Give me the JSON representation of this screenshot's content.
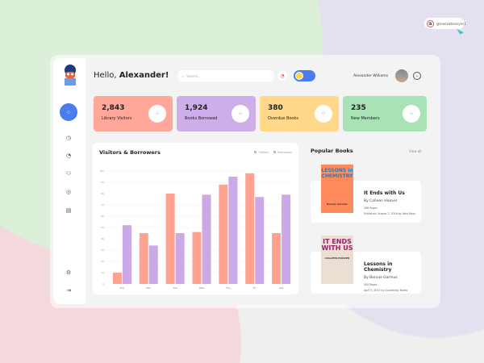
{
  "badge": {
    "text": "@innovationsync1",
    "logo": "IS"
  },
  "header": {
    "greeting": "Hello,",
    "name": "Alexander!",
    "search_placeholder": "Search...",
    "user_name": "Alexander Williams"
  },
  "stats": [
    {
      "value": "2,843",
      "label": "Library Visitors",
      "color": "#ffa899"
    },
    {
      "value": "1,924",
      "label": "Books Borrowed",
      "color": "#cdaee8"
    },
    {
      "value": "380",
      "label": "Overdue Books",
      "color": "#ffd88a"
    },
    {
      "value": "235",
      "label": "New Members",
      "color": "#a9e2b5"
    }
  ],
  "chart_data": {
    "type": "bar",
    "title": "Visitors & Borrowers",
    "categories": [
      "Sun",
      "Mon",
      "Tue",
      "Wed",
      "Thu",
      "Fri",
      "Sat"
    ],
    "series": [
      {
        "name": "Visitors",
        "color": "#ffa390",
        "values": [
          10,
          45,
          80,
          46,
          88,
          98,
          45
        ]
      },
      {
        "name": "Borrowers",
        "color": "#cca8e6",
        "values": [
          52,
          34,
          45,
          79,
          95,
          77,
          79
        ]
      }
    ],
    "ylim": [
      0,
      100
    ],
    "yticks": [
      0,
      10,
      20,
      30,
      40,
      50,
      60,
      70,
      80,
      90,
      100
    ],
    "grid": true,
    "legend": "top-right"
  },
  "books": {
    "title": "Popular Books",
    "view_all": "View all",
    "items": [
      {
        "title": "It Ends with Us",
        "author": "By Colleen Hoover",
        "pages": "288 Pages",
        "published": "Published: August 2, 2016 by Atria Book",
        "cover_text": "LESSONS in CHEMISTRY",
        "cover_author": "Bonnie Garmus"
      },
      {
        "title": "Lessons in Chemistry",
        "author": "By Bonnie Garmus",
        "pages": "400 Pages",
        "published": "April 5, 2022 by Doubleday Books",
        "cover_text": "IT ENDS WITH US",
        "cover_author": "COLLEEN HOOVER"
      }
    ]
  }
}
